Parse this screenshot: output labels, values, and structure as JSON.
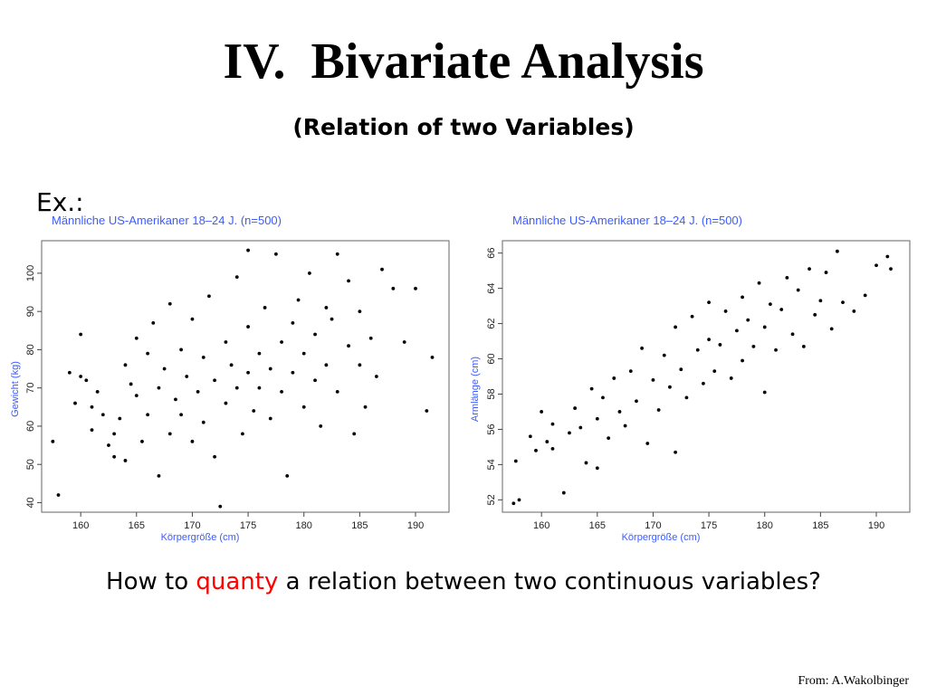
{
  "slide": {
    "title": "IV.  Bivariate Analysis",
    "subtitle": "(Relation of two Variables)",
    "example_label": "Ex.:",
    "question_before": "How to ",
    "question_highlight": "quanty",
    "question_after": " a relation between two continuous variables?",
    "credit": "From: A.Wakolbinger",
    "highlight_color": "#ff0000",
    "chart_text_color": "#3c5cff"
  },
  "chart_data": [
    {
      "type": "scatter",
      "title": "Männliche US-Amerikaner 18–24 J. (n=500)",
      "xlabel": "Körpergröße (cm)",
      "ylabel": "Gewicht (kg)",
      "xlim": [
        156.5,
        193
      ],
      "ylim": [
        37.5,
        108.5
      ],
      "xticks": [
        160,
        165,
        170,
        175,
        180,
        185,
        190
      ],
      "yticks": [
        40,
        50,
        60,
        70,
        80,
        90,
        100
      ],
      "n": 500,
      "points": [
        [
          157.5,
          56
        ],
        [
          158,
          42
        ],
        [
          159,
          74
        ],
        [
          159.5,
          66
        ],
        [
          160,
          73
        ],
        [
          160,
          84
        ],
        [
          160.5,
          72
        ],
        [
          161,
          65
        ],
        [
          161,
          59
        ],
        [
          161.5,
          69
        ],
        [
          162,
          63
        ],
        [
          162.5,
          55
        ],
        [
          163,
          52
        ],
        [
          163,
          58
        ],
        [
          163.5,
          62
        ],
        [
          164,
          76
        ],
        [
          164,
          51
        ],
        [
          164.5,
          71
        ],
        [
          165,
          83
        ],
        [
          165,
          68
        ],
        [
          165.5,
          56
        ],
        [
          166,
          79
        ],
        [
          166,
          63
        ],
        [
          166.5,
          87
        ],
        [
          167,
          70
        ],
        [
          167,
          47
        ],
        [
          167.5,
          75
        ],
        [
          168,
          92
        ],
        [
          168,
          58
        ],
        [
          168.5,
          67
        ],
        [
          169,
          80
        ],
        [
          169,
          63
        ],
        [
          169.5,
          73
        ],
        [
          170,
          88
        ],
        [
          170,
          56
        ],
        [
          170.5,
          69
        ],
        [
          171,
          78
        ],
        [
          171,
          61
        ],
        [
          171.5,
          94
        ],
        [
          172,
          72
        ],
        [
          172,
          52
        ],
        [
          172.5,
          39
        ],
        [
          173,
          82
        ],
        [
          173,
          66
        ],
        [
          173.5,
          76
        ],
        [
          174,
          99
        ],
        [
          174,
          70
        ],
        [
          174.5,
          58
        ],
        [
          175,
          86
        ],
        [
          175,
          74
        ],
        [
          175,
          106
        ],
        [
          175.5,
          64
        ],
        [
          176,
          79
        ],
        [
          176,
          70
        ],
        [
          176.5,
          91
        ],
        [
          177,
          75
        ],
        [
          177,
          62
        ],
        [
          177.5,
          105
        ],
        [
          178,
          82
        ],
        [
          178,
          69
        ],
        [
          178.5,
          47
        ],
        [
          179,
          87
        ],
        [
          179,
          74
        ],
        [
          179.5,
          93
        ],
        [
          180,
          79
        ],
        [
          180,
          65
        ],
        [
          180.5,
          100
        ],
        [
          181,
          84
        ],
        [
          181,
          72
        ],
        [
          181.5,
          60
        ],
        [
          182,
          91
        ],
        [
          182,
          76
        ],
        [
          182.5,
          88
        ],
        [
          183,
          105
        ],
        [
          183,
          69
        ],
        [
          184,
          81
        ],
        [
          184,
          98
        ],
        [
          184.5,
          58
        ],
        [
          185,
          76
        ],
        [
          185,
          90
        ],
        [
          185.5,
          65
        ],
        [
          186,
          83
        ],
        [
          186.5,
          73
        ],
        [
          187,
          101
        ],
        [
          188,
          96
        ],
        [
          189,
          82
        ],
        [
          190,
          96
        ],
        [
          191,
          64
        ],
        [
          191.5,
          78
        ]
      ],
      "grid": false,
      "legend": "none"
    },
    {
      "type": "scatter",
      "title": "Männliche US-Amerikaner 18–24 J. (n=500)",
      "xlabel": "Körpergröße (cm)",
      "ylabel": "Armlänge (cm)",
      "xlim": [
        156.5,
        193
      ],
      "ylim": [
        51.3,
        66.7
      ],
      "xticks": [
        160,
        165,
        170,
        175,
        180,
        185,
        190
      ],
      "yticks": [
        52,
        54,
        56,
        58,
        60,
        62,
        64,
        66
      ],
      "n": 500,
      "points": [
        [
          157.5,
          51.8
        ],
        [
          157.7,
          54.2
        ],
        [
          158,
          52
        ],
        [
          159,
          55.6
        ],
        [
          159.5,
          54.8
        ],
        [
          160,
          57
        ],
        [
          160.5,
          55.3
        ],
        [
          161,
          54.9
        ],
        [
          161,
          56.3
        ],
        [
          162,
          52.4
        ],
        [
          162.5,
          55.8
        ],
        [
          163,
          57.2
        ],
        [
          163.5,
          56.1
        ],
        [
          164,
          54.1
        ],
        [
          164.5,
          58.3
        ],
        [
          165,
          56.6
        ],
        [
          165,
          53.8
        ],
        [
          165.5,
          57.8
        ],
        [
          166,
          55.5
        ],
        [
          166.5,
          58.9
        ],
        [
          167,
          57
        ],
        [
          167.5,
          56.2
        ],
        [
          168,
          59.3
        ],
        [
          168.5,
          57.6
        ],
        [
          169,
          60.6
        ],
        [
          169.5,
          55.2
        ],
        [
          170,
          58.8
        ],
        [
          170.5,
          57.1
        ],
        [
          171,
          60.2
        ],
        [
          171.5,
          58.4
        ],
        [
          172,
          61.8
        ],
        [
          172,
          54.7
        ],
        [
          172.5,
          59.4
        ],
        [
          173,
          57.8
        ],
        [
          173.5,
          62.4
        ],
        [
          174,
          60.5
        ],
        [
          174.5,
          58.6
        ],
        [
          175,
          61.1
        ],
        [
          175,
          63.2
        ],
        [
          175.5,
          59.3
        ],
        [
          176,
          60.8
        ],
        [
          176.5,
          62.7
        ],
        [
          177,
          58.9
        ],
        [
          177.5,
          61.6
        ],
        [
          178,
          63.5
        ],
        [
          178,
          59.9
        ],
        [
          178.5,
          62.2
        ],
        [
          179,
          60.7
        ],
        [
          179.5,
          64.3
        ],
        [
          180,
          61.8
        ],
        [
          180,
          58.1
        ],
        [
          180.5,
          63.1
        ],
        [
          181,
          60.5
        ],
        [
          181.5,
          62.8
        ],
        [
          182,
          64.6
        ],
        [
          182.5,
          61.4
        ],
        [
          183,
          63.9
        ],
        [
          183.5,
          60.7
        ],
        [
          184,
          65.1
        ],
        [
          184.5,
          62.5
        ],
        [
          185,
          63.3
        ],
        [
          185.5,
          64.9
        ],
        [
          186,
          61.7
        ],
        [
          186.5,
          66.1
        ],
        [
          187,
          63.2
        ],
        [
          188,
          62.7
        ],
        [
          189,
          63.6
        ],
        [
          190,
          65.3
        ],
        [
          191,
          65.8
        ],
        [
          191.3,
          65.1
        ]
      ],
      "grid": false,
      "legend": "none"
    }
  ]
}
